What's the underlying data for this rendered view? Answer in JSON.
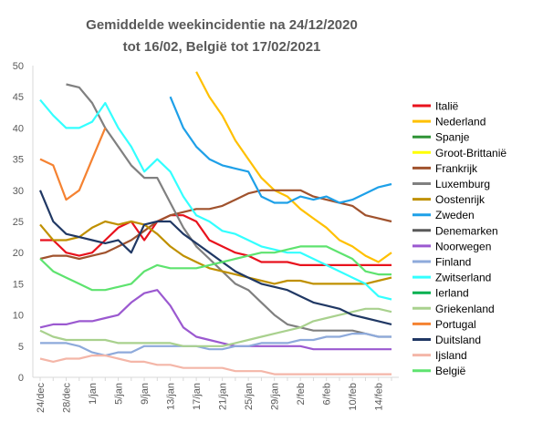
{
  "chart_data": {
    "type": "line",
    "title_lines": [
      "Gemiddelde weekincidentie  na 24/12/2020",
      "tot 16/02, België tot 17/02/2021"
    ],
    "xlabel": "",
    "ylabel": "",
    "ylim": [
      0,
      50
    ],
    "yticks": [
      0,
      5,
      10,
      15,
      20,
      25,
      30,
      35,
      40,
      45,
      50
    ],
    "grid": false,
    "legend_position": "right",
    "x_labels": [
      "24/dec",
      "26/dec",
      "28/dec",
      "30/dec",
      "1/jan",
      "3/jan",
      "5/jan",
      "7/jan",
      "9/jan",
      "11/jan",
      "13/jan",
      "15/jan",
      "17/jan",
      "19/jan",
      "21/jan",
      "23/jan",
      "25/jan",
      "27/jan",
      "29/jan",
      "31/jan",
      "2/feb",
      "4/feb",
      "6/feb",
      "8/feb",
      "10/feb",
      "12/feb",
      "14/feb",
      "16/feb"
    ],
    "series": [
      {
        "name": "Italië",
        "color": "#e8121d",
        "values": [
          22,
          22,
          20,
          19.5,
          20,
          22,
          24,
          25,
          22,
          25,
          26,
          26,
          25,
          22,
          21,
          20,
          19.5,
          18.5,
          18.5,
          18.5,
          18,
          18,
          18,
          18,
          18,
          18,
          18,
          18
        ]
      },
      {
        "name": "Nederland",
        "color": "#ffc000",
        "values": [
          null,
          null,
          null,
          null,
          null,
          null,
          null,
          null,
          null,
          null,
          null,
          null,
          49,
          45,
          42,
          38,
          35,
          32,
          30,
          29,
          27,
          25.5,
          24,
          22,
          21,
          19.5,
          18.5,
          20
        ]
      },
      {
        "name": "Spanje",
        "color": "#2f9336",
        "values": [
          null,
          null,
          null,
          null,
          null,
          null,
          null,
          null,
          null,
          null,
          null,
          null,
          null,
          null,
          null,
          null,
          null,
          null,
          null,
          null,
          null,
          null,
          null,
          null,
          null,
          null,
          null,
          null
        ]
      },
      {
        "name": "Groot-Brittanië",
        "color": "#ffff00",
        "values": [
          null,
          null,
          null,
          null,
          null,
          null,
          null,
          null,
          null,
          null,
          null,
          null,
          null,
          null,
          null,
          null,
          null,
          null,
          null,
          null,
          null,
          null,
          null,
          null,
          null,
          null,
          null,
          null
        ]
      },
      {
        "name": "Frankrijk",
        "color": "#a0522d",
        "values": [
          19,
          19.5,
          19.5,
          19,
          19.5,
          20,
          21,
          22,
          23.5,
          25,
          26,
          26.5,
          27,
          27,
          27.5,
          28.5,
          29.5,
          30,
          30,
          30,
          30,
          29,
          28.5,
          28,
          27.5,
          26,
          25.5,
          25
        ]
      },
      {
        "name": "Luxemburg",
        "color": "#808080",
        "values": [
          null,
          null,
          47,
          46.5,
          44,
          40,
          37,
          34,
          32,
          32,
          28,
          24,
          21,
          19,
          17,
          15,
          14,
          12,
          10,
          8.5,
          8,
          7.5,
          7.5,
          7.5,
          7.5,
          7,
          6.5,
          6.5
        ]
      },
      {
        "name": "Oostenrijk",
        "color": "#bf9000",
        "values": [
          24.5,
          22,
          22,
          22.5,
          24,
          25,
          24.5,
          25,
          24.5,
          23,
          21,
          19.5,
          18.5,
          17.5,
          17,
          16.5,
          16,
          15.5,
          15,
          15.5,
          15.5,
          15,
          15,
          15,
          15,
          15,
          15.5,
          16
        ]
      },
      {
        "name": "Zweden",
        "color": "#1ea0e8",
        "values": [
          null,
          null,
          null,
          null,
          null,
          null,
          null,
          null,
          null,
          null,
          45,
          40,
          37,
          35,
          34,
          33.5,
          33,
          29,
          28,
          28,
          29,
          28.5,
          29,
          28,
          28.5,
          29.5,
          30.5,
          31
        ]
      },
      {
        "name": "Denemarken",
        "color": "#595959",
        "values": [
          null,
          null,
          null,
          null,
          null,
          null,
          null,
          null,
          null,
          null,
          null,
          null,
          null,
          null,
          null,
          null,
          null,
          null,
          null,
          null,
          null,
          null,
          null,
          null,
          null,
          null,
          null,
          null
        ]
      },
      {
        "name": "Noorwegen",
        "color": "#9b59d0",
        "values": [
          8,
          8.5,
          8.5,
          9,
          9,
          9.5,
          10,
          12,
          13.5,
          14,
          11.5,
          8,
          6.5,
          6,
          5.5,
          5,
          5,
          5,
          5,
          5,
          5,
          4.5,
          4.5,
          4.5,
          4.5,
          4.5,
          4.5,
          4.5
        ]
      },
      {
        "name": "Finland",
        "color": "#8eaadb",
        "values": [
          5.5,
          5.5,
          5.5,
          5,
          4,
          3.5,
          4,
          4,
          5,
          5,
          5,
          5,
          5,
          4.5,
          4.5,
          5,
          5,
          5.5,
          5.5,
          5.5,
          6,
          6,
          6.5,
          6.5,
          7,
          7,
          6.5,
          6.5
        ]
      },
      {
        "name": "Zwitserland",
        "color": "#33ffff",
        "values": [
          44.5,
          42,
          40,
          40,
          41,
          44,
          40,
          37,
          33,
          35,
          33,
          29,
          26,
          25,
          23.5,
          23,
          22,
          21,
          20.5,
          20,
          20,
          19,
          18,
          17,
          16,
          15,
          13,
          12.5
        ]
      },
      {
        "name": "Ierland",
        "color": "#00b050",
        "values": [
          null,
          null,
          null,
          null,
          null,
          null,
          null,
          null,
          null,
          null,
          null,
          null,
          null,
          null,
          null,
          null,
          null,
          null,
          null,
          null,
          null,
          null,
          null,
          null,
          null,
          null,
          null,
          null
        ]
      },
      {
        "name": "Griekenland",
        "color": "#a9d18e",
        "values": [
          7.5,
          6.5,
          6,
          6,
          6,
          6,
          5.5,
          5.5,
          5.5,
          5.5,
          5.5,
          5,
          5,
          5,
          5,
          5.5,
          6,
          6.5,
          7,
          7.5,
          8,
          9,
          9.5,
          10,
          10.5,
          11,
          11,
          10.5
        ]
      },
      {
        "name": "Portugal",
        "color": "#f58231",
        "values": [
          35,
          34,
          28.5,
          30,
          35,
          40,
          null,
          null,
          null,
          null,
          null,
          null,
          null,
          null,
          null,
          null,
          null,
          null,
          null,
          null,
          null,
          null,
          null,
          null,
          null,
          null,
          null,
          null
        ]
      },
      {
        "name": "Duitsland",
        "color": "#203864",
        "values": [
          30,
          25,
          23,
          22.5,
          22,
          21.5,
          22,
          20,
          24.5,
          25,
          25,
          23,
          21.5,
          20,
          18.5,
          17,
          16,
          15,
          14.5,
          14,
          13,
          12,
          11.5,
          11,
          10,
          9.5,
          9,
          8.5
        ]
      },
      {
        "name": "Ijsland",
        "color": "#f4b6a8",
        "values": [
          3,
          2.5,
          3,
          3,
          3.5,
          3.5,
          3,
          2.5,
          2.5,
          2,
          2,
          1.5,
          1.5,
          1.5,
          1.5,
          1,
          1,
          1,
          0.5,
          0.5,
          0.5,
          0.5,
          0.5,
          0.5,
          0.5,
          0.5,
          0.5,
          0.5
        ]
      },
      {
        "name": "België",
        "color": "#5ee36f",
        "values": [
          19,
          17,
          16,
          15,
          14,
          14,
          14.5,
          15,
          17,
          18,
          17.5,
          17.5,
          17.5,
          18,
          18.5,
          19,
          19.5,
          20,
          20,
          20.5,
          21,
          21,
          21,
          20,
          19,
          17,
          16.5,
          16.5
        ]
      }
    ]
  }
}
